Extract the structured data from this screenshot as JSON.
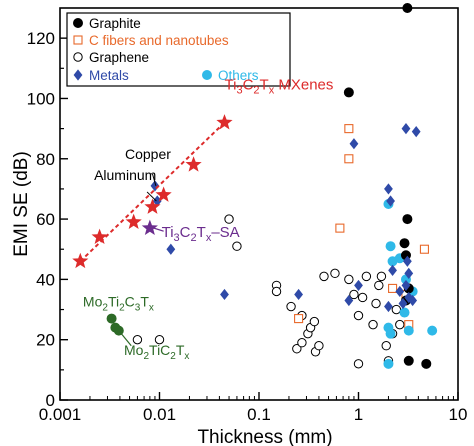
{
  "chart_data": {
    "type": "scatter",
    "xlabel": "Thickness (mm)",
    "ylabel": "EMI SE (dB)",
    "x_scale": "log",
    "xlim": [
      0.001,
      10
    ],
    "ylim": [
      0,
      130
    ],
    "x_ticks": [
      0.001,
      0.01,
      0.1,
      1,
      10
    ],
    "x_tick_labels": [
      "0.001",
      "0.01",
      "0.1",
      "1",
      "10"
    ],
    "y_ticks": [
      0,
      20,
      40,
      60,
      80,
      100,
      120
    ],
    "y_tick_labels": [
      "0",
      "20",
      "40",
      "60",
      "80",
      "100",
      "120"
    ],
    "legend": {
      "placement": "top-right",
      "entries": [
        {
          "name": "Graphite",
          "marker": "filled-circle",
          "color": "#000000"
        },
        {
          "name": "C fibers and nanotubes",
          "marker": "open-square",
          "color": "#e8692b"
        },
        {
          "name": "Graphene",
          "marker": "open-circle",
          "color": "#000000"
        },
        {
          "name": "Metals",
          "marker": "filled-diamond",
          "color": "#2f4aa8"
        },
        {
          "name": "Others",
          "marker": "filled-circle",
          "color": "#2fb9e8"
        }
      ]
    },
    "series": [
      {
        "name": "Graphite",
        "marker": "filled-circle",
        "color": "#000000",
        "points": [
          [
            0.8,
            102
          ],
          [
            3.1,
            130
          ],
          [
            3.1,
            60
          ],
          [
            2.9,
            52
          ],
          [
            3.0,
            48
          ],
          [
            3.2,
            37
          ],
          [
            3.0,
            33
          ],
          [
            3.2,
            13
          ],
          [
            4.8,
            12
          ]
        ]
      },
      {
        "name": "C fibers and nanotubes",
        "marker": "open-square",
        "color": "#e8692b",
        "points": [
          [
            0.8,
            90
          ],
          [
            0.8,
            80
          ],
          [
            0.65,
            57
          ],
          [
            0.25,
            27
          ],
          [
            2.2,
            37
          ],
          [
            3.0,
            35
          ],
          [
            4.6,
            50
          ],
          [
            3.2,
            25
          ]
        ]
      },
      {
        "name": "Graphene",
        "marker": "open-circle",
        "color": "#000000",
        "points": [
          [
            0.05,
            60
          ],
          [
            0.06,
            51
          ],
          [
            0.006,
            20
          ],
          [
            0.01,
            20
          ],
          [
            0.15,
            38
          ],
          [
            0.15,
            36
          ],
          [
            0.21,
            31
          ],
          [
            0.27,
            28
          ],
          [
            0.24,
            17
          ],
          [
            0.27,
            19
          ],
          [
            0.31,
            22
          ],
          [
            0.33,
            24
          ],
          [
            0.36,
            26
          ],
          [
            0.37,
            16
          ],
          [
            0.4,
            18
          ],
          [
            0.45,
            41
          ],
          [
            0.58,
            42
          ],
          [
            0.8,
            40
          ],
          [
            0.9,
            35
          ],
          [
            1.0,
            28
          ],
          [
            1.2,
            41
          ],
          [
            1.5,
            32
          ],
          [
            1.6,
            38
          ],
          [
            1.7,
            41
          ],
          [
            1.9,
            18
          ],
          [
            1.0,
            12
          ],
          [
            2.0,
            13
          ],
          [
            2.2,
            22
          ],
          [
            2.4,
            30
          ],
          [
            2.6,
            25
          ],
          [
            1.4,
            25
          ],
          [
            1.1,
            34
          ]
        ]
      },
      {
        "name": "Metals",
        "marker": "filled-diamond",
        "color": "#2f4aa8",
        "points": [
          [
            0.009,
            71
          ],
          [
            0.0095,
            66
          ],
          [
            0.013,
            50
          ],
          [
            0.045,
            35
          ],
          [
            0.25,
            35
          ],
          [
            0.8,
            33
          ],
          [
            0.9,
            85
          ],
          [
            1.0,
            38
          ],
          [
            2.0,
            70
          ],
          [
            2.1,
            66
          ],
          [
            3.0,
            90
          ],
          [
            3.8,
            89
          ],
          [
            3.1,
            46
          ],
          [
            3.2,
            42
          ],
          [
            2.0,
            31
          ],
          [
            2.2,
            43
          ],
          [
            2.6,
            36
          ],
          [
            3.0,
            38
          ],
          [
            3.5,
            33
          ],
          [
            2.8,
            32
          ],
          [
            3.2,
            34
          ]
        ]
      },
      {
        "name": "Others",
        "marker": "filled-circle",
        "color": "#2fb9e8",
        "points": [
          [
            2.0,
            65
          ],
          [
            2.1,
            51
          ],
          [
            2.2,
            46
          ],
          [
            2.0,
            24
          ],
          [
            2.1,
            22
          ],
          [
            2.0,
            12
          ],
          [
            2.9,
            29
          ],
          [
            3.2,
            23
          ],
          [
            5.5,
            23
          ],
          [
            3.0,
            40
          ],
          [
            2.6,
            47
          ],
          [
            3.5,
            36
          ]
        ]
      },
      {
        "name": "Ti3C2Tx MXenes",
        "marker": "star",
        "color": "#dd2b2b",
        "points": [
          [
            0.0016,
            46
          ],
          [
            0.0025,
            54
          ],
          [
            0.0055,
            59
          ],
          [
            0.0085,
            64
          ],
          [
            0.011,
            68
          ],
          [
            0.022,
            78
          ],
          [
            0.045,
            92
          ]
        ],
        "trendline": {
          "style": "dashed",
          "from": [
            0.0016,
            46
          ],
          "to": [
            0.045,
            92
          ]
        }
      },
      {
        "name": "Ti3C2Tx-SA",
        "marker": "star",
        "color": "#6b2d8e",
        "points": [
          [
            0.008,
            57
          ]
        ]
      },
      {
        "name": "Mo2Ti2C3Tx / Mo2TiC2Tx",
        "marker": "filled-circle",
        "color": "#2d6a27",
        "points": [
          [
            0.0033,
            27
          ],
          [
            0.0036,
            24
          ],
          [
            0.0039,
            23
          ]
        ]
      }
    ],
    "annotations": [
      {
        "id": "mxene",
        "color": "#dd2b2b",
        "base": "Ti",
        "sub1": "3",
        "mid": "C",
        "sub2": "2",
        "tail": "T",
        "sub3": "x",
        "suffix": " MXenes",
        "at": [
          0.045,
          103
        ]
      },
      {
        "id": "copper",
        "color": "#000000",
        "text": "Copper",
        "at": [
          0.0045,
          80
        ]
      },
      {
        "id": "aluminum",
        "color": "#000000",
        "text": "Aluminum",
        "at": [
          0.0022,
          73
        ]
      },
      {
        "id": "sa",
        "color": "#6b2d8e",
        "base": "Ti",
        "sub1": "3",
        "mid": "C",
        "sub2": "2",
        "tail": "T",
        "sub3": "x",
        "suffix": "–SA",
        "at": [
          0.0105,
          54
        ]
      },
      {
        "id": "mo2ti2",
        "color": "#2d6a27",
        "base": "Mo",
        "sub1": "2",
        "mid": "Ti",
        "sub2": "2",
        "tail": "C",
        "sub3": "3",
        "tail2": "T",
        "sub4": "x",
        "at": [
          0.0017,
          31
        ]
      },
      {
        "id": "mo2ti",
        "color": "#2d6a27",
        "base": "Mo",
        "sub1": "2",
        "mid": "TiC",
        "sub2": "2",
        "tail": "T",
        "sub3": "x",
        "at": [
          0.0044,
          15
        ]
      }
    ]
  }
}
